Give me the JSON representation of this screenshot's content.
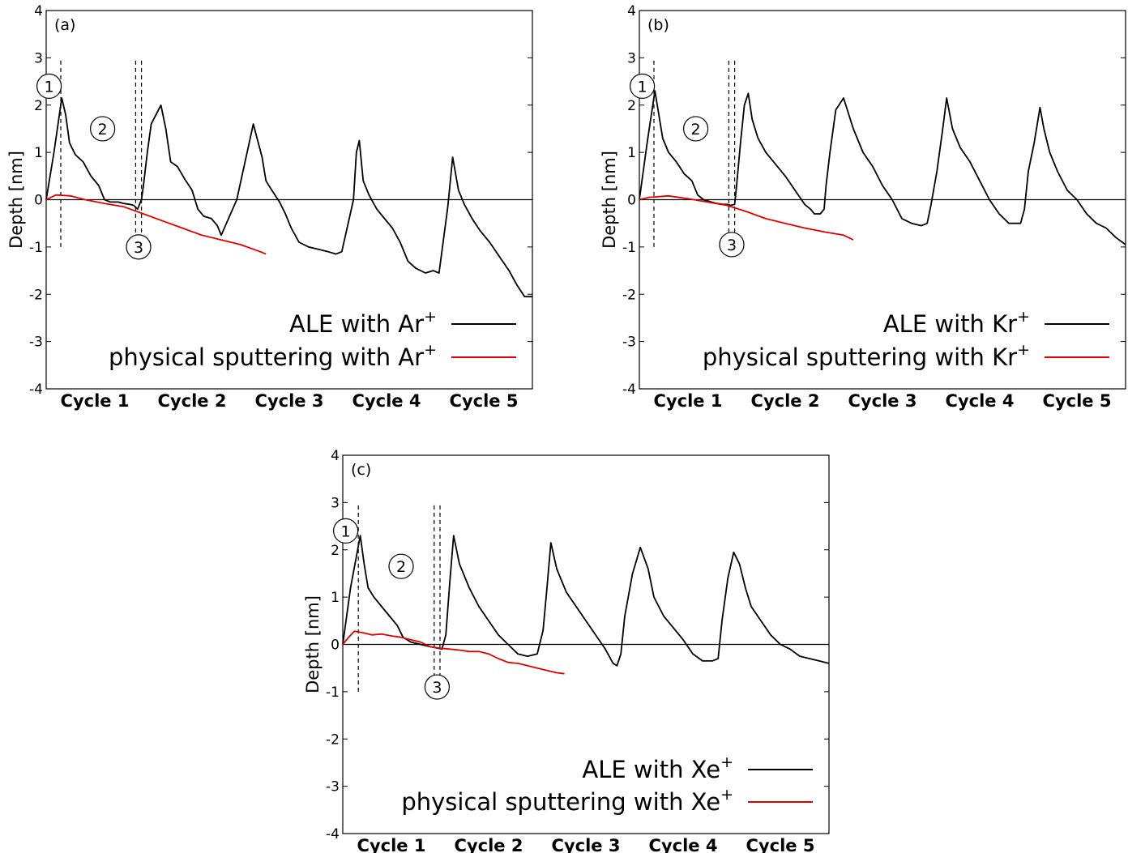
{
  "chart_data": [
    {
      "type": "line",
      "panel_label": "(a)",
      "ylabel": "Depth [nm]",
      "ylim": [
        -4,
        4
      ],
      "yticks": [
        "-4",
        "-3",
        "-2",
        "-1",
        "0",
        "1",
        "2",
        "3",
        "4"
      ],
      "xlim": [
        0,
        5
      ],
      "cycle_labels": [
        "Cycle 1",
        "Cycle 2",
        "Cycle 3",
        "Cycle 4",
        "Cycle 5"
      ],
      "legend": {
        "ale": {
          "text": "ALE with Ar",
          "sup": "+"
        },
        "sputter": {
          "text": "physical sputtering with Ar",
          "sup": "+"
        },
        "placement": "bottom-right"
      },
      "markers": [
        {
          "label": "1",
          "x": 0.03,
          "y": 2.4
        },
        {
          "label": "2",
          "x": 0.58,
          "y": 1.5
        },
        {
          "label": "3",
          "x": 0.95,
          "y": -1.0
        }
      ],
      "vlines": [
        {
          "x": 0.15,
          "y": [
            -1,
            3
          ]
        },
        {
          "x": 0.92,
          "y": [
            -1,
            3
          ]
        },
        {
          "x": 0.98,
          "y": [
            -1,
            3
          ]
        }
      ],
      "series": [
        {
          "color": "#000000",
          "x": [
            0,
            0.08,
            0.16,
            0.2,
            0.24,
            0.3,
            0.38,
            0.46,
            0.54,
            0.6,
            0.66,
            0.74,
            0.8,
            0.86,
            0.9,
            0.94,
            0.98,
            1.0,
            1.04,
            1.08,
            1.18,
            1.23,
            1.28,
            1.35,
            1.42,
            1.5,
            1.56,
            1.62,
            1.7,
            1.76,
            1.8,
            1.96,
            2.13,
            2.22,
            2.26,
            2.32,
            2.4,
            2.46,
            2.52,
            2.6,
            2.7,
            2.8,
            2.9,
            2.98,
            3.04,
            3.16,
            3.19,
            3.22,
            3.26,
            3.32,
            3.4,
            3.48,
            3.56,
            3.64,
            3.72,
            3.8,
            3.9,
            3.98,
            4.04,
            4.13,
            4.18,
            4.24,
            4.3,
            4.38,
            4.46,
            4.56,
            4.66,
            4.76,
            4.84,
            4.92,
            5.0
          ],
          "y": [
            0,
            1.0,
            2.15,
            1.8,
            1.2,
            0.95,
            0.8,
            0.5,
            0.3,
            0.0,
            -0.05,
            -0.05,
            -0.08,
            -0.1,
            -0.12,
            -0.2,
            0.0,
            0.3,
            1.0,
            1.6,
            2.0,
            1.5,
            0.8,
            0.7,
            0.45,
            0.2,
            -0.2,
            -0.35,
            -0.4,
            -0.55,
            -0.75,
            0.0,
            1.6,
            0.9,
            0.4,
            0.2,
            -0.05,
            -0.3,
            -0.6,
            -0.9,
            -1.0,
            -1.05,
            -1.1,
            -1.15,
            -1.1,
            0.0,
            1.0,
            1.25,
            0.4,
            0.1,
            -0.2,
            -0.4,
            -0.6,
            -0.9,
            -1.3,
            -1.45,
            -1.55,
            -1.5,
            -1.55,
            -0.15,
            0.9,
            0.2,
            -0.1,
            -0.4,
            -0.65,
            -0.9,
            -1.2,
            -1.5,
            -1.8,
            -2.05,
            -2.05
          ]
        },
        {
          "color": "#e00000",
          "x": [
            0,
            0.1,
            0.25,
            0.4,
            0.6,
            0.8,
            1.0,
            1.2,
            1.4,
            1.6,
            1.8,
            2.0,
            2.2,
            2.26
          ],
          "y": [
            0,
            0.1,
            0.08,
            0.0,
            -0.08,
            -0.15,
            -0.3,
            -0.45,
            -0.6,
            -0.75,
            -0.85,
            -0.95,
            -1.1,
            -1.15
          ]
        }
      ]
    },
    {
      "type": "line",
      "panel_label": "(b)",
      "ylabel": "Depth [nm]",
      "ylim": [
        -4,
        4
      ],
      "yticks": [
        "-4",
        "-3",
        "-2",
        "-1",
        "0",
        "1",
        "2",
        "3",
        "4"
      ],
      "xlim": [
        0,
        5
      ],
      "cycle_labels": [
        "Cycle 1",
        "Cycle 2",
        "Cycle 3",
        "Cycle 4",
        "Cycle 5"
      ],
      "legend": {
        "ale": {
          "text": "ALE with Kr",
          "sup": "+"
        },
        "sputter": {
          "text": "physical sputtering with Kr",
          "sup": "+"
        },
        "placement": "bottom-right"
      },
      "markers": [
        {
          "label": "1",
          "x": 0.03,
          "y": 2.4
        },
        {
          "label": "2",
          "x": 0.58,
          "y": 1.5
        },
        {
          "label": "3",
          "x": 0.95,
          "y": -0.95
        }
      ],
      "vlines": [
        {
          "x": 0.15,
          "y": [
            -1,
            3
          ]
        },
        {
          "x": 0.92,
          "y": [
            -1,
            3
          ]
        },
        {
          "x": 0.98,
          "y": [
            -1,
            3
          ]
        }
      ],
      "series": [
        {
          "color": "#000000",
          "x": [
            0,
            0.08,
            0.16,
            0.2,
            0.24,
            0.3,
            0.38,
            0.46,
            0.54,
            0.6,
            0.66,
            0.74,
            0.8,
            0.86,
            0.9,
            0.94,
            0.98,
            1.0,
            1.04,
            1.08,
            1.12,
            1.16,
            1.22,
            1.3,
            1.4,
            1.5,
            1.6,
            1.7,
            1.76,
            1.8,
            1.86,
            1.9,
            1.92,
            1.96,
            2.02,
            2.1,
            2.2,
            2.3,
            2.4,
            2.5,
            2.6,
            2.7,
            2.8,
            2.9,
            2.96,
            3.0,
            3.06,
            3.12,
            3.16,
            3.22,
            3.3,
            3.4,
            3.5,
            3.6,
            3.7,
            3.8,
            3.86,
            3.92,
            3.96,
            4.0,
            4.06,
            4.12,
            4.16,
            4.22,
            4.3,
            4.4,
            4.5,
            4.6,
            4.7,
            4.8,
            4.9,
            5.0
          ],
          "y": [
            0,
            1.2,
            2.3,
            1.8,
            1.3,
            1.0,
            0.8,
            0.55,
            0.4,
            0.1,
            0.0,
            -0.05,
            -0.08,
            -0.1,
            -0.1,
            -0.12,
            -0.1,
            0.3,
            1.2,
            2.0,
            2.25,
            1.7,
            1.3,
            1.0,
            0.75,
            0.5,
            0.2,
            -0.1,
            -0.2,
            -0.3,
            -0.3,
            -0.2,
            0.3,
            1.0,
            1.9,
            2.15,
            1.5,
            1.0,
            0.7,
            0.3,
            0.0,
            -0.4,
            -0.5,
            -0.55,
            -0.5,
            -0.1,
            0.6,
            1.5,
            2.15,
            1.5,
            1.1,
            0.8,
            0.4,
            0.0,
            -0.3,
            -0.5,
            -0.5,
            -0.5,
            -0.2,
            0.6,
            1.2,
            1.95,
            1.5,
            1.0,
            0.6,
            0.2,
            0.0,
            -0.3,
            -0.5,
            -0.6,
            -0.8,
            -0.95
          ]
        },
        {
          "color": "#e00000",
          "x": [
            0,
            0.1,
            0.3,
            0.5,
            0.7,
            0.9,
            1.1,
            1.3,
            1.5,
            1.7,
            1.9,
            2.1,
            2.2
          ],
          "y": [
            0,
            0.05,
            0.08,
            0.02,
            -0.05,
            -0.12,
            -0.25,
            -0.4,
            -0.5,
            -0.6,
            -0.68,
            -0.75,
            -0.85
          ]
        }
      ]
    },
    {
      "type": "line",
      "panel_label": "(c)",
      "ylabel": "Depth [nm]",
      "ylim": [
        -4,
        4
      ],
      "yticks": [
        "-4",
        "-3",
        "-2",
        "-1",
        "0",
        "1",
        "2",
        "3",
        "4"
      ],
      "xlim": [
        0,
        5
      ],
      "cycle_labels": [
        "Cycle 1",
        "Cycle 2",
        "Cycle 3",
        "Cycle 4",
        "Cycle 5"
      ],
      "legend": {
        "ale": {
          "text": "ALE with Xe",
          "sup": "+"
        },
        "sputter": {
          "text": "physical sputtering with Xe",
          "sup": "+"
        },
        "placement": "bottom-right"
      },
      "markers": [
        {
          "label": "1",
          "x": 0.03,
          "y": 2.4
        },
        {
          "label": "2",
          "x": 0.6,
          "y": 1.65
        },
        {
          "label": "3",
          "x": 0.97,
          "y": -0.9
        }
      ],
      "vlines": [
        {
          "x": 0.16,
          "y": [
            -1,
            3
          ]
        },
        {
          "x": 0.94,
          "y": [
            -1,
            3
          ]
        },
        {
          "x": 1.0,
          "y": [
            -1,
            3
          ]
        }
      ],
      "series": [
        {
          "color": "#000000",
          "x": [
            0,
            0.08,
            0.18,
            0.22,
            0.26,
            0.32,
            0.4,
            0.48,
            0.56,
            0.62,
            0.7,
            0.8,
            0.9,
            0.98,
            1.02,
            1.06,
            1.1,
            1.14,
            1.2,
            1.3,
            1.4,
            1.5,
            1.6,
            1.7,
            1.8,
            1.9,
            2.0,
            2.06,
            2.1,
            2.14,
            2.2,
            2.3,
            2.4,
            2.5,
            2.6,
            2.7,
            2.78,
            2.82,
            2.86,
            2.9,
            2.98,
            3.06,
            3.14,
            3.2,
            3.3,
            3.4,
            3.5,
            3.6,
            3.7,
            3.8,
            3.86,
            3.9,
            3.96,
            4.02,
            4.08,
            4.14,
            4.2,
            4.3,
            4.4,
            4.5,
            4.6,
            4.7,
            4.8,
            4.9,
            5.0
          ],
          "y": [
            0,
            1.2,
            2.3,
            1.7,
            1.2,
            1.0,
            0.8,
            0.6,
            0.4,
            0.15,
            0.05,
            0.0,
            -0.05,
            -0.08,
            -0.1,
            0.2,
            1.3,
            2.3,
            1.7,
            1.2,
            0.8,
            0.5,
            0.2,
            0.0,
            -0.2,
            -0.25,
            -0.2,
            0.3,
            1.2,
            2.15,
            1.6,
            1.1,
            0.8,
            0.5,
            0.2,
            -0.1,
            -0.4,
            -0.45,
            -0.2,
            0.6,
            1.5,
            2.05,
            1.6,
            1.0,
            0.6,
            0.35,
            0.1,
            -0.2,
            -0.35,
            -0.35,
            -0.3,
            0.5,
            1.4,
            1.95,
            1.7,
            1.2,
            0.8,
            0.5,
            0.2,
            0.0,
            -0.1,
            -0.25,
            -0.3,
            -0.35,
            -0.4
          ]
        },
        {
          "color": "#e00000",
          "x": [
            0,
            0.06,
            0.12,
            0.2,
            0.3,
            0.4,
            0.5,
            0.6,
            0.7,
            0.8,
            0.9,
            1.0,
            1.1,
            1.2,
            1.3,
            1.4,
            1.5,
            1.6,
            1.7,
            1.8,
            1.9,
            2.0,
            2.1,
            2.2,
            2.28
          ],
          "y": [
            0,
            0.15,
            0.28,
            0.25,
            0.2,
            0.22,
            0.18,
            0.15,
            0.1,
            0.05,
            -0.05,
            -0.08,
            -0.1,
            -0.12,
            -0.15,
            -0.15,
            -0.2,
            -0.3,
            -0.38,
            -0.4,
            -0.45,
            -0.5,
            -0.55,
            -0.6,
            -0.62
          ]
        }
      ]
    }
  ]
}
